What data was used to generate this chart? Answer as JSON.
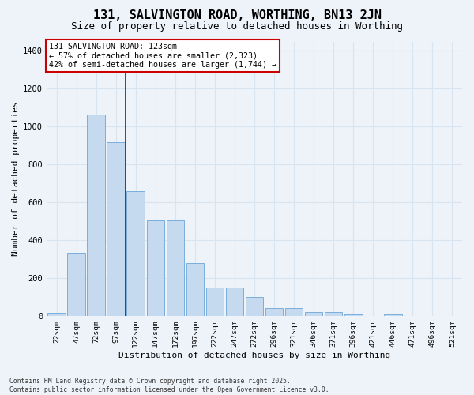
{
  "title1": "131, SALVINGTON ROAD, WORTHING, BN13 2JN",
  "title2": "Size of property relative to detached houses in Worthing",
  "xlabel": "Distribution of detached houses by size in Worthing",
  "ylabel": "Number of detached properties",
  "categories": [
    "22sqm",
    "47sqm",
    "72sqm",
    "97sqm",
    "122sqm",
    "147sqm",
    "172sqm",
    "197sqm",
    "222sqm",
    "247sqm",
    "272sqm",
    "296sqm",
    "321sqm",
    "346sqm",
    "371sqm",
    "396sqm",
    "421sqm",
    "446sqm",
    "471sqm",
    "496sqm",
    "521sqm"
  ],
  "values": [
    18,
    335,
    1065,
    920,
    660,
    505,
    505,
    280,
    150,
    150,
    100,
    42,
    42,
    20,
    20,
    10,
    0,
    10,
    0,
    0,
    0
  ],
  "bar_color": "#c5d9ef",
  "bar_edge_color": "#7aaedb",
  "vline_x_index": 4,
  "vline_color": "#cc0000",
  "annotation_text": "131 SALVINGTON ROAD: 123sqm\n← 57% of detached houses are smaller (2,323)\n42% of semi-detached houses are larger (1,744) →",
  "background_color": "#eef2f9",
  "grid_color": "#d8e4f0",
  "ylim": [
    0,
    1450
  ],
  "yticks": [
    0,
    200,
    400,
    600,
    800,
    1000,
    1200,
    1400
  ],
  "footer": "Contains HM Land Registry data © Crown copyright and database right 2025.\nContains public sector information licensed under the Open Government Licence v3.0."
}
